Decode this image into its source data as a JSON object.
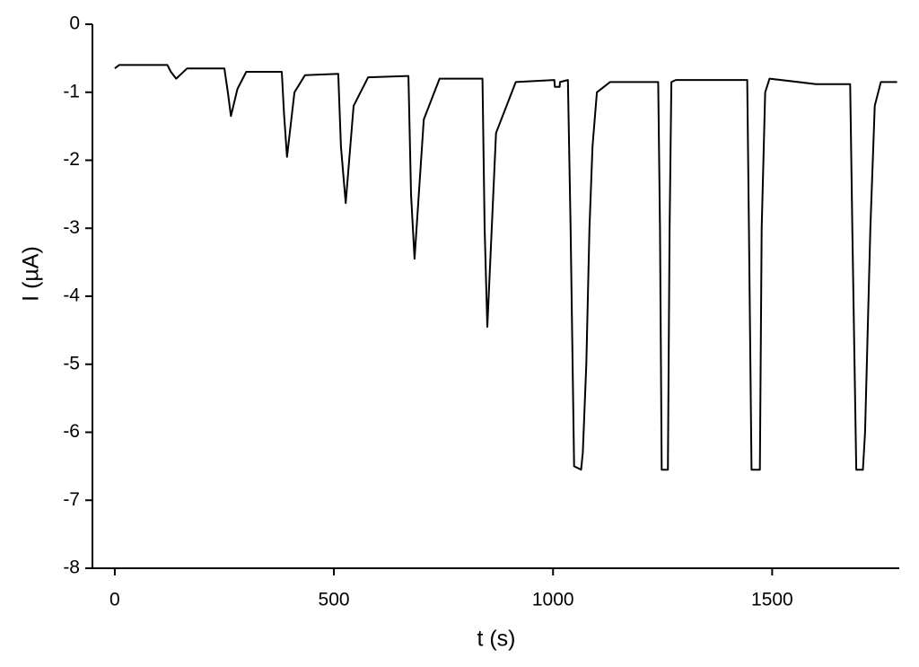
{
  "chart_data": {
    "type": "line",
    "x_label": "t (s)",
    "y_label": "I (µA)",
    "x": [
      0,
      10,
      120,
      128,
      140,
      165,
      250,
      258,
      265,
      280,
      300,
      381,
      386,
      393,
      410,
      434,
      510,
      516,
      527,
      545,
      578,
      670,
      676,
      684,
      705,
      741,
      839,
      844,
      850,
      870,
      915,
      1003,
      1004,
      1015,
      1016,
      1034,
      1040,
      1048,
      1064,
      1068,
      1076,
      1083,
      1090,
      1100,
      1130,
      1240,
      1244,
      1248,
      1262,
      1266,
      1270,
      1280,
      1443,
      1447,
      1453,
      1472,
      1476,
      1484,
      1494,
      1600,
      1678,
      1683,
      1692,
      1707,
      1712,
      1724,
      1734,
      1748,
      1785
    ],
    "y": [
      -0.65,
      -0.6,
      -0.6,
      -0.7,
      -0.8,
      -0.65,
      -0.65,
      -1.0,
      -1.35,
      -0.95,
      -0.7,
      -0.7,
      -1.3,
      -1.95,
      -1.0,
      -0.75,
      -0.73,
      -1.8,
      -2.63,
      -1.2,
      -0.78,
      -0.76,
      -2.5,
      -3.45,
      -1.4,
      -0.8,
      -0.8,
      -3.0,
      -4.45,
      -1.6,
      -0.85,
      -0.82,
      -0.92,
      -0.92,
      -0.85,
      -0.82,
      -3.0,
      -6.5,
      -6.55,
      -6.3,
      -5.0,
      -3.0,
      -1.8,
      -1.0,
      -0.85,
      -0.85,
      -3.0,
      -6.55,
      -6.55,
      -3.0,
      -0.85,
      -0.82,
      -0.82,
      -3.0,
      -6.55,
      -6.55,
      -3.0,
      -1.0,
      -0.8,
      -0.88,
      -0.88,
      -3.0,
      -6.55,
      -6.55,
      -6.0,
      -3.0,
      -1.2,
      -0.85,
      -0.85
    ],
    "color": "#000000",
    "xlim": [
      -51,
      1790
    ],
    "ylim": [
      -8,
      0
    ],
    "xticks": [
      0,
      500,
      1000,
      1500
    ],
    "yticks": [
      0,
      -1,
      -2,
      -3,
      -4,
      -5,
      -6,
      -7,
      -8
    ]
  }
}
